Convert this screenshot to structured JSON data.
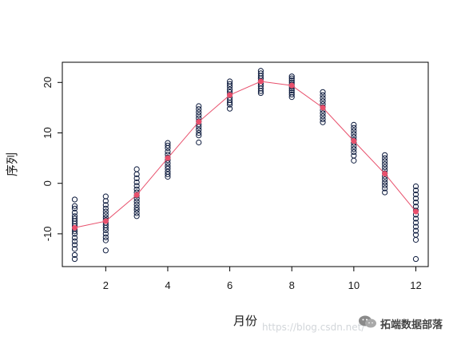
{
  "chart_data": {
    "type": "scatter",
    "title": "",
    "xlabel": "月份",
    "ylabel": "序列",
    "xlim": [
      0.6,
      12.4
    ],
    "ylim": [
      -16.5,
      24
    ],
    "xticks": [
      2,
      4,
      6,
      8,
      10,
      12
    ],
    "yticks": [
      -10,
      0,
      10,
      20
    ],
    "xtick_labels": [
      "2",
      "4",
      "6",
      "8",
      "10",
      "12"
    ],
    "ytick_labels": [
      "-10",
      "0",
      "10",
      "20"
    ],
    "grid": false,
    "legend": "none",
    "point_style": "open circles",
    "observations": [
      {
        "month": 1,
        "values": [
          -3.2,
          -4.5,
          -5.0,
          -5.8,
          -6.5,
          -7.0,
          -7.5,
          -8.0,
          -8.5,
          -9.0,
          -9.5,
          -10.0,
          -10.8,
          -11.5,
          -12.2,
          -13.0,
          -14.2,
          -15.0
        ]
      },
      {
        "month": 2,
        "values": [
          -2.6,
          -3.5,
          -4.3,
          -5.0,
          -5.6,
          -6.2,
          -6.8,
          -7.3,
          -7.8,
          -8.3,
          -8.8,
          -9.3,
          -10.0,
          -10.7,
          -11.3,
          -13.3
        ]
      },
      {
        "month": 3,
        "values": [
          2.8,
          1.8,
          1.0,
          0.2,
          -0.5,
          -1.2,
          -1.8,
          -2.4,
          -3.0,
          -3.6,
          -4.2,
          -4.8,
          -5.3,
          -5.9,
          -6.5
        ]
      },
      {
        "month": 4,
        "values": [
          8.0,
          7.5,
          7.0,
          6.3,
          5.7,
          5.1,
          4.6,
          4.0,
          3.4,
          2.9,
          2.3,
          1.8,
          1.3
        ]
      },
      {
        "month": 5,
        "values": [
          15.3,
          14.7,
          14.1,
          13.5,
          12.9,
          12.3,
          11.7,
          11.2,
          10.6,
          10.0,
          9.5,
          8.1
        ]
      },
      {
        "month": 6,
        "values": [
          20.2,
          19.7,
          19.2,
          18.6,
          18.1,
          17.6,
          17.0,
          16.5,
          16.0,
          15.6,
          14.8
        ]
      },
      {
        "month": 7,
        "values": [
          22.3,
          21.8,
          21.3,
          20.8,
          20.3,
          19.8,
          19.3,
          18.8,
          18.3,
          17.9
        ]
      },
      {
        "month": 8,
        "values": [
          21.2,
          20.8,
          20.4,
          20.0,
          19.6,
          19.2,
          18.8,
          18.4,
          18.0,
          17.6,
          17.1
        ]
      },
      {
        "month": 9,
        "values": [
          18.1,
          17.5,
          16.9,
          16.3,
          15.7,
          15.1,
          14.5,
          13.9,
          13.3,
          12.7,
          12.1
        ]
      },
      {
        "month": 10,
        "values": [
          11.6,
          11.0,
          10.4,
          9.8,
          9.2,
          8.6,
          8.0,
          7.4,
          6.8,
          6.2,
          5.5,
          4.5
        ]
      },
      {
        "month": 11,
        "values": [
          5.6,
          5.0,
          4.4,
          3.8,
          3.2,
          2.6,
          2.0,
          1.4,
          0.8,
          0.2,
          -0.4,
          -1.0,
          -1.8
        ]
      },
      {
        "month": 12,
        "values": [
          -0.6,
          -1.4,
          -2.2,
          -3.0,
          -3.8,
          -4.6,
          -5.4,
          -6.2,
          -7.0,
          -7.8,
          -8.6,
          -9.4,
          -10.2,
          -11.2,
          -15.0
        ]
      }
    ],
    "mean_series": {
      "x": [
        1,
        2,
        3,
        4,
        5,
        6,
        7,
        8,
        9,
        10,
        11,
        12
      ],
      "y": [
        -8.8,
        -7.5,
        -2.3,
        5.0,
        12.2,
        17.5,
        20.2,
        19.4,
        15.0,
        8.4,
        1.9,
        -5.6
      ],
      "color": "#e8506c"
    },
    "point_color": "#0d1b3e"
  },
  "watermark": {
    "url": "https://blog.csdn.net/",
    "brand": "拓端数据部落",
    "icon": "wechat-icon"
  }
}
